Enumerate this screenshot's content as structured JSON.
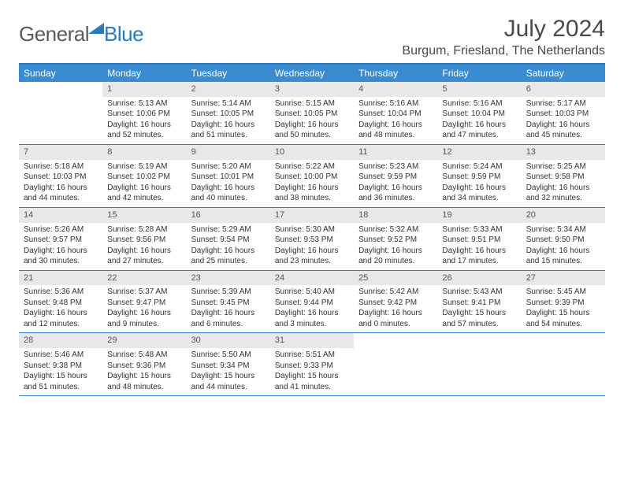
{
  "logo": {
    "part1": "General",
    "part2": "Blue"
  },
  "title": "July 2024",
  "location": "Burgum, Friesland, The Netherlands",
  "colors": {
    "header_bg": "#3a8bd0",
    "border": "#2b7bbf",
    "daynum_bg": "#e8e8e8",
    "text": "#333333",
    "logo_gray": "#5a5a5a",
    "logo_blue": "#2b7bbf",
    "background": "#ffffff"
  },
  "typography": {
    "title_fontsize": 30,
    "location_fontsize": 16,
    "dayhead_fontsize": 12,
    "daynum_fontsize": 11,
    "body_fontsize": 10
  },
  "dayNames": [
    "Sunday",
    "Monday",
    "Tuesday",
    "Wednesday",
    "Thursday",
    "Friday",
    "Saturday"
  ],
  "weeks": [
    [
      {
        "n": "",
        "sr": "",
        "ss": "",
        "dl": ""
      },
      {
        "n": "1",
        "sr": "5:13 AM",
        "ss": "10:06 PM",
        "dl": "16 hours and 52 minutes."
      },
      {
        "n": "2",
        "sr": "5:14 AM",
        "ss": "10:05 PM",
        "dl": "16 hours and 51 minutes."
      },
      {
        "n": "3",
        "sr": "5:15 AM",
        "ss": "10:05 PM",
        "dl": "16 hours and 50 minutes."
      },
      {
        "n": "4",
        "sr": "5:16 AM",
        "ss": "10:04 PM",
        "dl": "16 hours and 48 minutes."
      },
      {
        "n": "5",
        "sr": "5:16 AM",
        "ss": "10:04 PM",
        "dl": "16 hours and 47 minutes."
      },
      {
        "n": "6",
        "sr": "5:17 AM",
        "ss": "10:03 PM",
        "dl": "16 hours and 45 minutes."
      }
    ],
    [
      {
        "n": "7",
        "sr": "5:18 AM",
        "ss": "10:03 PM",
        "dl": "16 hours and 44 minutes."
      },
      {
        "n": "8",
        "sr": "5:19 AM",
        "ss": "10:02 PM",
        "dl": "16 hours and 42 minutes."
      },
      {
        "n": "9",
        "sr": "5:20 AM",
        "ss": "10:01 PM",
        "dl": "16 hours and 40 minutes."
      },
      {
        "n": "10",
        "sr": "5:22 AM",
        "ss": "10:00 PM",
        "dl": "16 hours and 38 minutes."
      },
      {
        "n": "11",
        "sr": "5:23 AM",
        "ss": "9:59 PM",
        "dl": "16 hours and 36 minutes."
      },
      {
        "n": "12",
        "sr": "5:24 AM",
        "ss": "9:59 PM",
        "dl": "16 hours and 34 minutes."
      },
      {
        "n": "13",
        "sr": "5:25 AM",
        "ss": "9:58 PM",
        "dl": "16 hours and 32 minutes."
      }
    ],
    [
      {
        "n": "14",
        "sr": "5:26 AM",
        "ss": "9:57 PM",
        "dl": "16 hours and 30 minutes."
      },
      {
        "n": "15",
        "sr": "5:28 AM",
        "ss": "9:56 PM",
        "dl": "16 hours and 27 minutes."
      },
      {
        "n": "16",
        "sr": "5:29 AM",
        "ss": "9:54 PM",
        "dl": "16 hours and 25 minutes."
      },
      {
        "n": "17",
        "sr": "5:30 AM",
        "ss": "9:53 PM",
        "dl": "16 hours and 23 minutes."
      },
      {
        "n": "18",
        "sr": "5:32 AM",
        "ss": "9:52 PM",
        "dl": "16 hours and 20 minutes."
      },
      {
        "n": "19",
        "sr": "5:33 AM",
        "ss": "9:51 PM",
        "dl": "16 hours and 17 minutes."
      },
      {
        "n": "20",
        "sr": "5:34 AM",
        "ss": "9:50 PM",
        "dl": "16 hours and 15 minutes."
      }
    ],
    [
      {
        "n": "21",
        "sr": "5:36 AM",
        "ss": "9:48 PM",
        "dl": "16 hours and 12 minutes."
      },
      {
        "n": "22",
        "sr": "5:37 AM",
        "ss": "9:47 PM",
        "dl": "16 hours and 9 minutes."
      },
      {
        "n": "23",
        "sr": "5:39 AM",
        "ss": "9:45 PM",
        "dl": "16 hours and 6 minutes."
      },
      {
        "n": "24",
        "sr": "5:40 AM",
        "ss": "9:44 PM",
        "dl": "16 hours and 3 minutes."
      },
      {
        "n": "25",
        "sr": "5:42 AM",
        "ss": "9:42 PM",
        "dl": "16 hours and 0 minutes."
      },
      {
        "n": "26",
        "sr": "5:43 AM",
        "ss": "9:41 PM",
        "dl": "15 hours and 57 minutes."
      },
      {
        "n": "27",
        "sr": "5:45 AM",
        "ss": "9:39 PM",
        "dl": "15 hours and 54 minutes."
      }
    ],
    [
      {
        "n": "28",
        "sr": "5:46 AM",
        "ss": "9:38 PM",
        "dl": "15 hours and 51 minutes."
      },
      {
        "n": "29",
        "sr": "5:48 AM",
        "ss": "9:36 PM",
        "dl": "15 hours and 48 minutes."
      },
      {
        "n": "30",
        "sr": "5:50 AM",
        "ss": "9:34 PM",
        "dl": "15 hours and 44 minutes."
      },
      {
        "n": "31",
        "sr": "5:51 AM",
        "ss": "9:33 PM",
        "dl": "15 hours and 41 minutes."
      },
      {
        "n": "",
        "sr": "",
        "ss": "",
        "dl": ""
      },
      {
        "n": "",
        "sr": "",
        "ss": "",
        "dl": ""
      },
      {
        "n": "",
        "sr": "",
        "ss": "",
        "dl": ""
      }
    ]
  ],
  "labels": {
    "sunrise": "Sunrise: ",
    "sunset": "Sunset: ",
    "daylight": "Daylight: "
  }
}
